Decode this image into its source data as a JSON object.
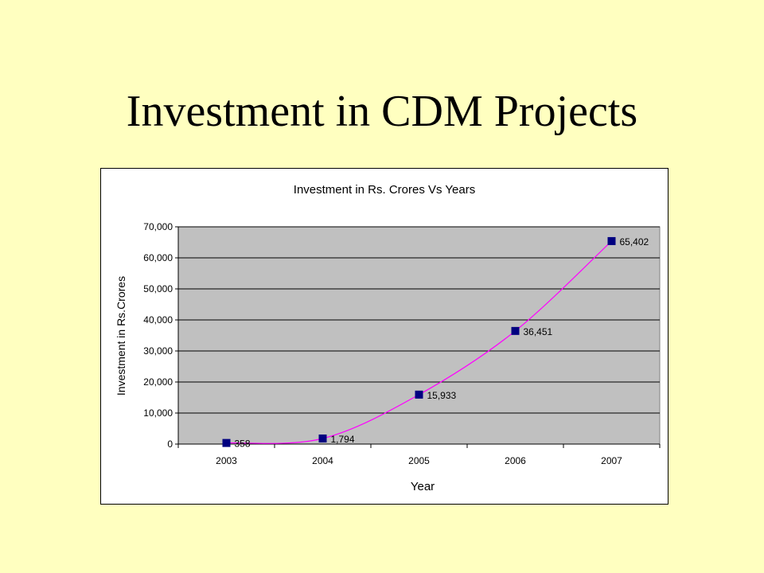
{
  "slide": {
    "title": "Investment in CDM Projects"
  },
  "colors": {
    "background": "#ffffc0",
    "plot_area": "#c0c0c0",
    "line": "#ff00ff",
    "marker": "#000080"
  },
  "chart_data": {
    "type": "line",
    "title": "Investment in Rs. Crores Vs Years",
    "xlabel": "Year",
    "ylabel": "Investment in Rs.Crores",
    "categories": [
      "2003",
      "2004",
      "2005",
      "2006",
      "2007"
    ],
    "series": [
      {
        "values": [
          358,
          1794,
          15933,
          36451,
          65402
        ],
        "data_labels": [
          "358",
          "1,794",
          "15,933",
          "36,451",
          "65,402"
        ],
        "line_color": "#ff00ff",
        "marker": "square",
        "marker_color": "#000080",
        "smooth": true
      }
    ],
    "ylim": [
      0,
      70000
    ],
    "y_ticks": [
      {
        "value": 0,
        "label": "0"
      },
      {
        "value": 10000,
        "label": "10,000"
      },
      {
        "value": 20000,
        "label": "20,000"
      },
      {
        "value": 30000,
        "label": "30,000"
      },
      {
        "value": 40000,
        "label": "40,000"
      },
      {
        "value": 50000,
        "label": "50,000"
      },
      {
        "value": 60000,
        "label": "60,000"
      },
      {
        "value": 70000,
        "label": "70,000"
      }
    ],
    "grid": true,
    "legend": "none"
  }
}
